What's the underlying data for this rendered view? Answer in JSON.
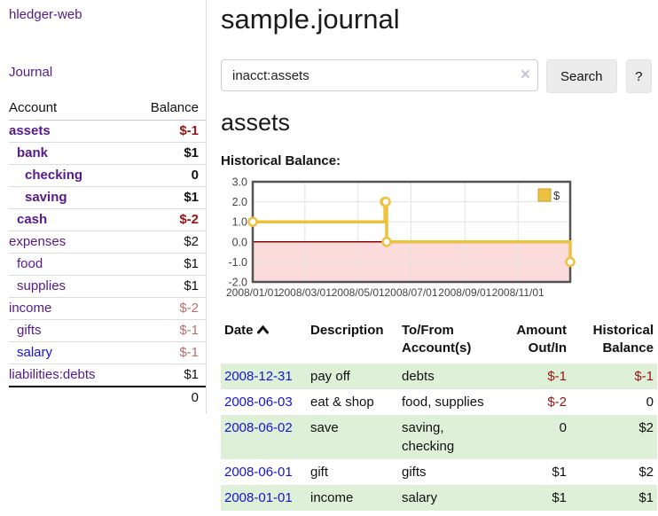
{
  "app": {
    "title": "hledger-web",
    "nav_journal": "Journal"
  },
  "sidebar": {
    "accounts_table": {
      "account_col": "Account",
      "balance_col": "Balance",
      "rows": [
        {
          "name": "assets",
          "depth": 1,
          "balance": "$-1",
          "emphasis": true,
          "balance_tone": "neg-strong",
          "link_tone": "purple"
        },
        {
          "name": "bank",
          "depth": 2,
          "balance": "$1",
          "emphasis": true,
          "balance_tone": "",
          "link_tone": "purple"
        },
        {
          "name": "checking",
          "depth": 3,
          "balance": "0",
          "emphasis": true,
          "balance_tone": "",
          "link_tone": "purple"
        },
        {
          "name": "saving",
          "depth": 3,
          "balance": "$1",
          "emphasis": true,
          "balance_tone": "",
          "link_tone": "purple"
        },
        {
          "name": "cash",
          "depth": 2,
          "balance": "$-2",
          "emphasis": true,
          "balance_tone": "neg-strong",
          "link_tone": "purple"
        },
        {
          "name": "expenses",
          "depth": 1,
          "balance": "$2",
          "emphasis": false,
          "balance_tone": "",
          "link_tone": "purple"
        },
        {
          "name": "food",
          "depth": 2,
          "balance": "$1",
          "emphasis": false,
          "balance_tone": "",
          "link_tone": "purple"
        },
        {
          "name": "supplies",
          "depth": 2,
          "balance": "$1",
          "emphasis": false,
          "balance_tone": "",
          "link_tone": "purple"
        },
        {
          "name": "income",
          "depth": 1,
          "balance": "$-2",
          "emphasis": false,
          "balance_tone": "neg-soft",
          "link_tone": "purple"
        },
        {
          "name": "gifts",
          "depth": 2,
          "balance": "$-1",
          "emphasis": false,
          "balance_tone": "neg-soft",
          "link_tone": "purple"
        },
        {
          "name": "salary",
          "depth": 2,
          "balance": "$-1",
          "emphasis": false,
          "balance_tone": "neg-soft",
          "link_tone": "blue"
        },
        {
          "name": "liabilities:debts",
          "depth": 1,
          "balance": "$1",
          "emphasis": false,
          "balance_tone": "",
          "link_tone": "purple"
        }
      ],
      "total": "0"
    }
  },
  "header": {
    "title": "sample.journal"
  },
  "search": {
    "value": "inacct:assets",
    "clear_icon": "×",
    "button": "Search",
    "help_button": "?"
  },
  "account_page": {
    "heading": "assets",
    "chart_label": "Historical Balance:"
  },
  "chart_data": {
    "type": "line",
    "title": "Historical Balance",
    "series": [
      {
        "name": "$",
        "color": "#edc240",
        "step": true,
        "points": [
          [
            "2008-01-01",
            1
          ],
          [
            "2008-06-01",
            2
          ],
          [
            "2008-06-02",
            2
          ],
          [
            "2008-06-03",
            0
          ],
          [
            "2008-12-31",
            -1
          ]
        ]
      }
    ],
    "xlim": [
      "2008-01-01",
      "2008-12-31"
    ],
    "ylim": [
      -2,
      3
    ],
    "x_ticks": [
      "2008/01/01",
      "2008/03/01",
      "2008/05/01",
      "2008/07/01",
      "2008/09/01",
      "2008/11/01"
    ],
    "y_ticks": [
      "3.0",
      "2.0",
      "1.0",
      "0.0",
      "-1.0",
      "-2.0"
    ],
    "grid": true,
    "legend": {
      "label": "$",
      "position": "top-right"
    },
    "negative_region_color": "#fcdbdb",
    "zero_line_color": "#8b0000",
    "grid_color": "#e3e3e3",
    "border_color": "#545454"
  },
  "register": {
    "columns": [
      "Date",
      "Description",
      "To/From Account(s)",
      "Amount Out/In",
      "Historical Balance"
    ],
    "sort_icon": "chevron-up",
    "rows": [
      {
        "date": "2008-12-31",
        "description": "pay off",
        "accounts": "debts",
        "amount": "$-1",
        "amount_tone": "neg-strong",
        "balance": "$-1",
        "balance_tone": "neg-strong",
        "highlighted": true
      },
      {
        "date": "2008-06-03",
        "description": "eat & shop",
        "accounts": "food, supplies",
        "amount": "$-2",
        "amount_tone": "neg-strong",
        "balance": "0",
        "balance_tone": "",
        "highlighted": false
      },
      {
        "date": "2008-06-02",
        "description": "save",
        "accounts": "saving, checking",
        "amount": "0",
        "amount_tone": "",
        "balance": "$2",
        "balance_tone": "",
        "highlighted": true
      },
      {
        "date": "2008-06-01",
        "description": "gift",
        "accounts": "gifts",
        "amount": "$1",
        "amount_tone": "",
        "balance": "$2",
        "balance_tone": "",
        "highlighted": false
      },
      {
        "date": "2008-01-01",
        "description": "income",
        "accounts": "salary",
        "amount": "$1",
        "amount_tone": "",
        "balance": "$1",
        "balance_tone": "",
        "highlighted": true
      }
    ]
  },
  "colors": {
    "link_purple": "#551a8b",
    "link_blue": "#1414d2",
    "negative_strong": "#941414",
    "negative_soft": "#b86f6f",
    "row_highlight": "#dff0d8",
    "chart_line": "#edc240",
    "chart_negative_region": "#fcdbdb",
    "chart_zero_line": "#8b0000"
  }
}
